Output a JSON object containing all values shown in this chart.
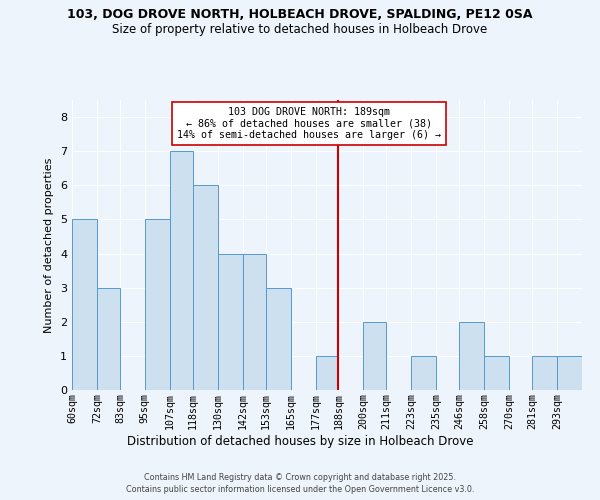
{
  "title1": "103, DOG DROVE NORTH, HOLBEACH DROVE, SPALDING, PE12 0SA",
  "title2": "Size of property relative to detached houses in Holbeach Drove",
  "xlabel": "Distribution of detached houses by size in Holbeach Drove",
  "ylabel": "Number of detached properties",
  "bin_labels": [
    "60sqm",
    "72sqm",
    "83sqm",
    "95sqm",
    "107sqm",
    "118sqm",
    "130sqm",
    "142sqm",
    "153sqm",
    "165sqm",
    "177sqm",
    "188sqm",
    "200sqm",
    "211sqm",
    "223sqm",
    "235sqm",
    "246sqm",
    "258sqm",
    "270sqm",
    "281sqm",
    "293sqm"
  ],
  "bin_edges": [
    60,
    72,
    83,
    95,
    107,
    118,
    130,
    142,
    153,
    165,
    177,
    188,
    200,
    211,
    223,
    235,
    246,
    258,
    270,
    281,
    293
  ],
  "counts": [
    5,
    3,
    0,
    5,
    7,
    6,
    4,
    4,
    3,
    0,
    1,
    0,
    2,
    0,
    1,
    0,
    2,
    1,
    0,
    1,
    1
  ],
  "bar_color": "#cce0f0",
  "bar_edge_color": "#5599cc",
  "marker_value": 188,
  "marker_color": "#cc0000",
  "annotation_title": "103 DOG DROVE NORTH: 189sqm",
  "annotation_line1": "← 86% of detached houses are smaller (38)",
  "annotation_line2": "14% of semi-detached houses are larger (6) →",
  "annotation_box_color": "#ffffff",
  "annotation_box_edge": "#cc0000",
  "ylim": [
    0,
    8.5
  ],
  "yticks": [
    0,
    1,
    2,
    3,
    4,
    5,
    6,
    7,
    8
  ],
  "footer1": "Contains HM Land Registry data © Crown copyright and database right 2025.",
  "footer2": "Contains public sector information licensed under the Open Government Licence v3.0.",
  "background_color": "#eef4fb",
  "grid_color": "#ffffff"
}
